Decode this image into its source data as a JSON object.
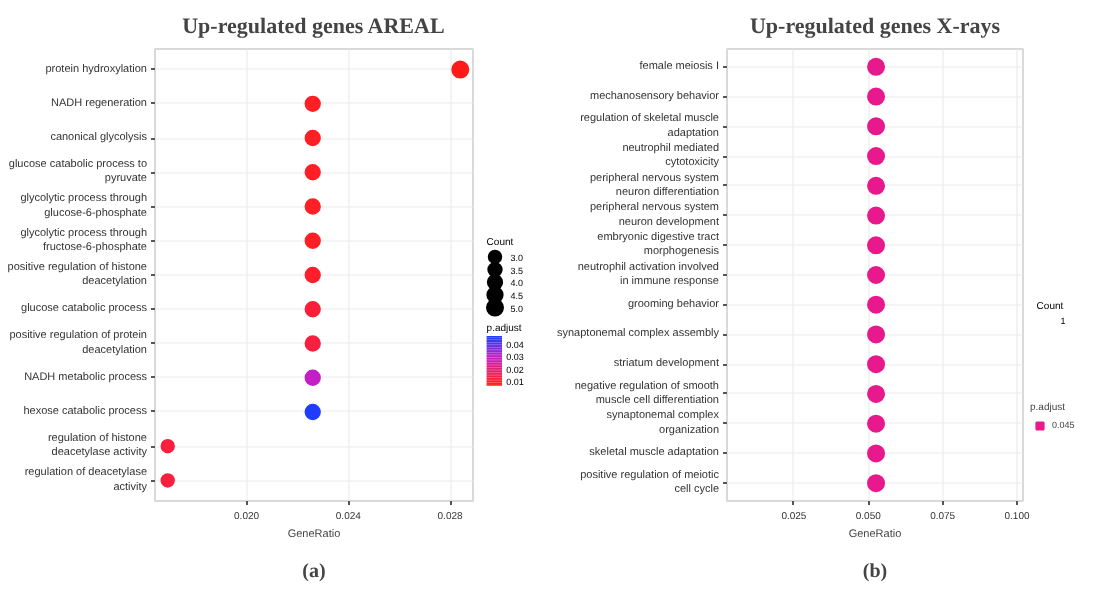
{
  "chart_data": [
    {
      "type": "bubble",
      "title": "Up-regulated genes AREAL",
      "xlabel": "GeneRatio",
      "orientation": "horizontal",
      "categories": [
        "protein hydroxylation",
        "NADH regeneration",
        "canonical glycolysis",
        "glucose catabolic process to pyruvate",
        "glycolytic process through glucose-6-phosphate",
        "glycolytic process through fructose-6-phosphate",
        "positive regulation of histone deacetylation",
        "glucose catabolic process",
        "positive regulation of protein deacetylation",
        "NADH metabolic process",
        "hexose catabolic process",
        "regulation of histone deacetylase activity",
        "regulation of deacetylase activity"
      ],
      "values": [
        0.0284,
        0.0226,
        0.0226,
        0.0226,
        0.0226,
        0.0226,
        0.0226,
        0.0226,
        0.0226,
        0.0226,
        0.0226,
        0.0169,
        0.0169
      ],
      "sizes": [
        5,
        4,
        4,
        4,
        4,
        4,
        4,
        4,
        4,
        4,
        4,
        3,
        3
      ],
      "size_legend": [
        {
          "value": 3,
          "label": "3.0"
        },
        {
          "value": 3.5,
          "label": "3.5"
        },
        {
          "value": 4,
          "label": "4.0"
        },
        {
          "value": 4.5,
          "label": "4.5"
        },
        {
          "value": 5,
          "label": "5.0"
        }
      ],
      "cvalues": [
        0.006,
        0.008,
        0.008,
        0.008,
        0.008,
        0.008,
        0.009,
        0.011,
        0.012,
        0.03,
        0.046,
        0.012,
        0.012
      ],
      "colors": [
        "#ff1a1a",
        "#ff1f24",
        "#ff1f24",
        "#ff1f24",
        "#ff1f24",
        "#ff1f24",
        "#ff1f2a",
        "#fa1f38",
        "#f7203e",
        "#c21fc4",
        "#1f3cff",
        "#f7203e",
        "#f7203e"
      ],
      "clim": [
        0.0057,
        0.047
      ],
      "cticks": [
        {
          "value": 0.01,
          "label": "0.01"
        },
        {
          "value": 0.02,
          "label": "0.02"
        },
        {
          "value": 0.03,
          "label": "0.03"
        },
        {
          "value": 0.04,
          "label": "0.04"
        }
      ],
      "legend_title": "Count",
      "clabel": "p.adjust",
      "xlim": [
        0.0164,
        0.0289
      ],
      "xticks": [
        {
          "value": 0.02,
          "label": "0.020"
        },
        {
          "value": 0.024,
          "label": "0.024"
        },
        {
          "value": 0.028,
          "label": "0.028"
        }
      ],
      "grid": true,
      "marker": "circle",
      "annotations": [
        "(a)"
      ]
    },
    {
      "type": "scatter",
      "title": "Up-regulated genes X-rays",
      "xlabel": "GeneRatio",
      "orientation": "horizontal",
      "categories": [
        "female meiosis I",
        "mechanosensory behavior",
        "regulation of skeletal muscle adaptation",
        "neutrophil mediated cytotoxicity",
        "peripheral nervous system neuron differentiation",
        "peripheral nervous system neuron development",
        "embryonic digestive tract morphogenesis",
        "neutrophil activation involved in immune response",
        "grooming behavior",
        "synaptonemal complex assembly",
        "striatum development",
        "negative regulation of smooth muscle cell differentiation",
        "synaptonemal complex organization",
        "skeletal muscle adaptation",
        "positive regulation of meiotic cell cycle"
      ],
      "series": [
        {
          "name": "0.045",
          "color": "#e8198c",
          "values": [
            0.0526,
            0.0526,
            0.0526,
            0.0526,
            0.0526,
            0.0526,
            0.0526,
            0.0526,
            0.0526,
            0.0526,
            0.0526,
            0.0526,
            0.0526,
            0.0526,
            0.0526
          ]
        }
      ],
      "legend_title": "Count",
      "clabel": "p.adjust",
      "xlim": [
        0.0025,
        0.102
      ],
      "xticks": [
        {
          "value": 0.025,
          "label": "0.025"
        },
        {
          "value": 0.05,
          "label": "0.050"
        },
        {
          "value": 0.075,
          "label": "0.075"
        },
        {
          "value": 0.1,
          "label": "0.100"
        }
      ],
      "grid": true,
      "legend": "right",
      "marker": "circle",
      "annotations": [
        "(b)",
        "1"
      ]
    }
  ]
}
